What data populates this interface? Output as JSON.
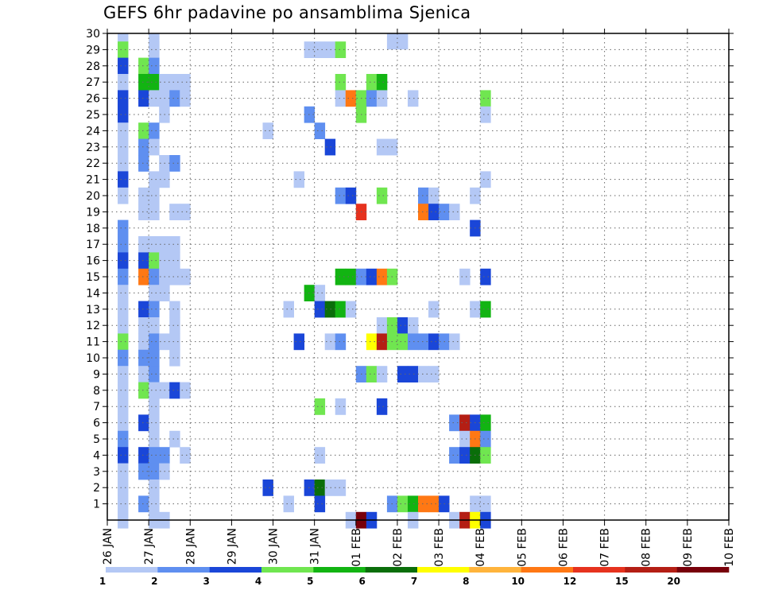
{
  "chart_data": {
    "type": "heatmap",
    "title": "GEFS 6hr padavine po ansamblima Sjenica",
    "y_ticks": [
      1,
      2,
      3,
      4,
      5,
      6,
      7,
      8,
      9,
      10,
      11,
      12,
      13,
      14,
      15,
      16,
      17,
      18,
      19,
      20,
      21,
      22,
      23,
      24,
      25,
      26,
      27,
      28,
      29,
      30
    ],
    "y_range": [
      0,
      30
    ],
    "x_ticks": [
      "26 JAN",
      "27 JAN",
      "28 JAN",
      "29 JAN",
      "30 JAN",
      "31 JAN",
      "01 FEB",
      "02 FEB",
      "03 FEB",
      "04 FEB",
      "05 FEB",
      "06 FEB",
      "07 FEB",
      "08 FEB",
      "09 FEB",
      "10 FEB"
    ],
    "x_range_steps": [
      0,
      60
    ],
    "steps_per_day": 4,
    "grid": true,
    "colorbar": {
      "levels": [
        "1",
        "2",
        "3",
        "4",
        "5",
        "6",
        "7",
        "8",
        "10",
        "12",
        "15",
        "20"
      ],
      "colors": [
        "#b4c8f5",
        "#5f8ff0",
        "#1a46d8",
        "#70e650",
        "#12b412",
        "#0a6e0a",
        "#ffff00",
        "#ffb43c",
        "#ff7814",
        "#e6321e",
        "#b41e14",
        "#78000a"
      ]
    },
    "cells": [
      [
        1,
        30,
        0
      ],
      [
        4,
        30,
        0
      ],
      [
        27,
        30,
        0
      ],
      [
        28,
        30,
        0
      ],
      [
        1,
        29,
        3
      ],
      [
        4,
        29,
        0
      ],
      [
        19,
        29,
        0
      ],
      [
        20,
        29,
        0
      ],
      [
        21,
        29,
        0
      ],
      [
        22,
        29,
        3
      ],
      [
        1,
        28,
        2
      ],
      [
        3,
        28,
        3
      ],
      [
        4,
        28,
        1
      ],
      [
        1,
        27,
        0
      ],
      [
        3,
        27,
        4
      ],
      [
        4,
        27,
        4
      ],
      [
        5,
        27,
        0
      ],
      [
        6,
        27,
        0
      ],
      [
        7,
        27,
        0
      ],
      [
        22,
        27,
        3
      ],
      [
        25,
        27,
        3
      ],
      [
        26,
        27,
        4
      ],
      [
        1,
        26,
        2
      ],
      [
        3,
        26,
        2
      ],
      [
        4,
        26,
        0
      ],
      [
        5,
        26,
        0
      ],
      [
        6,
        26,
        1
      ],
      [
        7,
        26,
        0
      ],
      [
        22,
        26,
        0
      ],
      [
        23,
        26,
        8
      ],
      [
        24,
        26,
        3
      ],
      [
        25,
        26,
        1
      ],
      [
        26,
        26,
        0
      ],
      [
        29,
        26,
        0
      ],
      [
        36,
        26,
        3
      ],
      [
        1,
        25,
        2
      ],
      [
        5,
        25,
        0
      ],
      [
        19,
        25,
        1
      ],
      [
        24,
        25,
        3
      ],
      [
        36,
        25,
        0
      ],
      [
        1,
        24,
        0
      ],
      [
        3,
        24,
        3
      ],
      [
        4,
        24,
        1
      ],
      [
        15,
        24,
        0
      ],
      [
        20,
        24,
        1
      ],
      [
        1,
        23,
        0
      ],
      [
        3,
        23,
        1
      ],
      [
        4,
        23,
        0
      ],
      [
        21,
        23,
        2
      ],
      [
        26,
        23,
        0
      ],
      [
        27,
        23,
        0
      ],
      [
        1,
        22,
        0
      ],
      [
        3,
        22,
        1
      ],
      [
        5,
        22,
        0
      ],
      [
        6,
        22,
        1
      ],
      [
        1,
        21,
        2
      ],
      [
        4,
        21,
        0
      ],
      [
        5,
        21,
        0
      ],
      [
        18,
        21,
        0
      ],
      [
        36,
        21,
        0
      ],
      [
        1,
        20,
        0
      ],
      [
        3,
        20,
        0
      ],
      [
        4,
        20,
        0
      ],
      [
        22,
        20,
        1
      ],
      [
        23,
        20,
        2
      ],
      [
        26,
        20,
        3
      ],
      [
        30,
        20,
        1
      ],
      [
        31,
        20,
        0
      ],
      [
        35,
        20,
        0
      ],
      [
        3,
        19,
        0
      ],
      [
        4,
        19,
        0
      ],
      [
        6,
        19,
        0
      ],
      [
        7,
        19,
        0
      ],
      [
        24,
        19,
        9
      ],
      [
        30,
        19,
        8
      ],
      [
        31,
        19,
        2
      ],
      [
        32,
        19,
        1
      ],
      [
        33,
        19,
        0
      ],
      [
        1,
        18,
        1
      ],
      [
        35,
        18,
        2
      ],
      [
        1,
        17,
        1
      ],
      [
        3,
        17,
        0
      ],
      [
        4,
        17,
        0
      ],
      [
        5,
        17,
        0
      ],
      [
        6,
        17,
        0
      ],
      [
        1,
        16,
        2
      ],
      [
        3,
        16,
        2
      ],
      [
        4,
        16,
        3
      ],
      [
        5,
        16,
        0
      ],
      [
        6,
        16,
        0
      ],
      [
        1,
        15,
        1
      ],
      [
        3,
        15,
        8
      ],
      [
        4,
        15,
        1
      ],
      [
        5,
        15,
        0
      ],
      [
        6,
        15,
        0
      ],
      [
        7,
        15,
        0
      ],
      [
        22,
        15,
        4
      ],
      [
        23,
        15,
        4
      ],
      [
        24,
        15,
        1
      ],
      [
        25,
        15,
        2
      ],
      [
        26,
        15,
        8
      ],
      [
        27,
        15,
        3
      ],
      [
        34,
        15,
        0
      ],
      [
        36,
        15,
        2
      ],
      [
        1,
        14,
        0
      ],
      [
        4,
        14,
        0
      ],
      [
        5,
        14,
        0
      ],
      [
        19,
        14,
        4
      ],
      [
        20,
        14,
        0
      ],
      [
        1,
        13,
        0
      ],
      [
        3,
        13,
        2
      ],
      [
        4,
        13,
        1
      ],
      [
        6,
        13,
        0
      ],
      [
        17,
        13,
        0
      ],
      [
        20,
        13,
        2
      ],
      [
        21,
        13,
        5
      ],
      [
        22,
        13,
        4
      ],
      [
        23,
        13,
        0
      ],
      [
        31,
        13,
        0
      ],
      [
        35,
        13,
        0
      ],
      [
        36,
        13,
        4
      ],
      [
        1,
        12,
        0
      ],
      [
        3,
        12,
        0
      ],
      [
        4,
        12,
        0
      ],
      [
        6,
        12,
        0
      ],
      [
        26,
        12,
        0
      ],
      [
        27,
        12,
        3
      ],
      [
        28,
        12,
        2
      ],
      [
        29,
        12,
        0
      ],
      [
        1,
        11,
        3
      ],
      [
        3,
        11,
        0
      ],
      [
        4,
        11,
        1
      ],
      [
        5,
        11,
        0
      ],
      [
        6,
        11,
        0
      ],
      [
        18,
        11,
        2
      ],
      [
        21,
        11,
        0
      ],
      [
        22,
        11,
        1
      ],
      [
        25,
        11,
        6
      ],
      [
        26,
        11,
        10
      ],
      [
        27,
        11,
        3
      ],
      [
        28,
        11,
        3
      ],
      [
        29,
        11,
        1
      ],
      [
        30,
        11,
        1
      ],
      [
        31,
        11,
        2
      ],
      [
        32,
        11,
        1
      ],
      [
        33,
        11,
        0
      ],
      [
        1,
        10,
        1
      ],
      [
        3,
        10,
        1
      ],
      [
        4,
        10,
        1
      ],
      [
        6,
        10,
        0
      ],
      [
        1,
        9,
        0
      ],
      [
        3,
        9,
        0
      ],
      [
        4,
        9,
        1
      ],
      [
        24,
        9,
        1
      ],
      [
        25,
        9,
        3
      ],
      [
        26,
        9,
        0
      ],
      [
        28,
        9,
        2
      ],
      [
        29,
        9,
        2
      ],
      [
        30,
        9,
        0
      ],
      [
        31,
        9,
        0
      ],
      [
        1,
        8,
        0
      ],
      [
        3,
        8,
        3
      ],
      [
        4,
        8,
        0
      ],
      [
        5,
        8,
        0
      ],
      [
        6,
        8,
        2
      ],
      [
        7,
        8,
        0
      ],
      [
        1,
        7,
        0
      ],
      [
        4,
        7,
        0
      ],
      [
        20,
        7,
        3
      ],
      [
        22,
        7,
        0
      ],
      [
        26,
        7,
        2
      ],
      [
        1,
        6,
        0
      ],
      [
        3,
        6,
        2
      ],
      [
        4,
        6,
        0
      ],
      [
        33,
        6,
        1
      ],
      [
        34,
        6,
        10
      ],
      [
        35,
        6,
        2
      ],
      [
        36,
        6,
        4
      ],
      [
        1,
        5,
        1
      ],
      [
        4,
        5,
        0
      ],
      [
        6,
        5,
        0
      ],
      [
        34,
        5,
        0
      ],
      [
        35,
        5,
        8
      ],
      [
        36,
        5,
        1
      ],
      [
        1,
        4,
        2
      ],
      [
        3,
        4,
        2
      ],
      [
        4,
        4,
        1
      ],
      [
        5,
        4,
        1
      ],
      [
        7,
        4,
        0
      ],
      [
        20,
        4,
        0
      ],
      [
        33,
        4,
        1
      ],
      [
        34,
        4,
        2
      ],
      [
        35,
        4,
        5
      ],
      [
        36,
        4,
        3
      ],
      [
        1,
        3,
        0
      ],
      [
        3,
        3,
        1
      ],
      [
        4,
        3,
        1
      ],
      [
        5,
        3,
        0
      ],
      [
        1,
        2,
        0
      ],
      [
        4,
        2,
        0
      ],
      [
        15,
        2,
        2
      ],
      [
        19,
        2,
        2
      ],
      [
        20,
        2,
        5
      ],
      [
        21,
        2,
        0
      ],
      [
        22,
        2,
        0
      ],
      [
        1,
        1,
        0
      ],
      [
        3,
        1,
        1
      ],
      [
        4,
        1,
        0
      ],
      [
        17,
        1,
        0
      ],
      [
        20,
        1,
        2
      ],
      [
        27,
        1,
        1
      ],
      [
        28,
        1,
        3
      ],
      [
        29,
        1,
        4
      ],
      [
        30,
        1,
        8
      ],
      [
        31,
        1,
        8
      ],
      [
        32,
        1,
        2
      ],
      [
        35,
        1,
        0
      ],
      [
        36,
        1,
        0
      ],
      [
        1,
        0,
        0
      ],
      [
        4,
        0,
        0
      ],
      [
        5,
        0,
        0
      ],
      [
        23,
        0,
        0
      ],
      [
        24,
        0,
        11
      ],
      [
        25,
        0,
        2
      ],
      [
        29,
        0,
        0
      ],
      [
        33,
        0,
        0
      ],
      [
        34,
        0,
        10
      ],
      [
        35,
        0,
        6
      ],
      [
        36,
        0,
        2
      ]
    ]
  }
}
